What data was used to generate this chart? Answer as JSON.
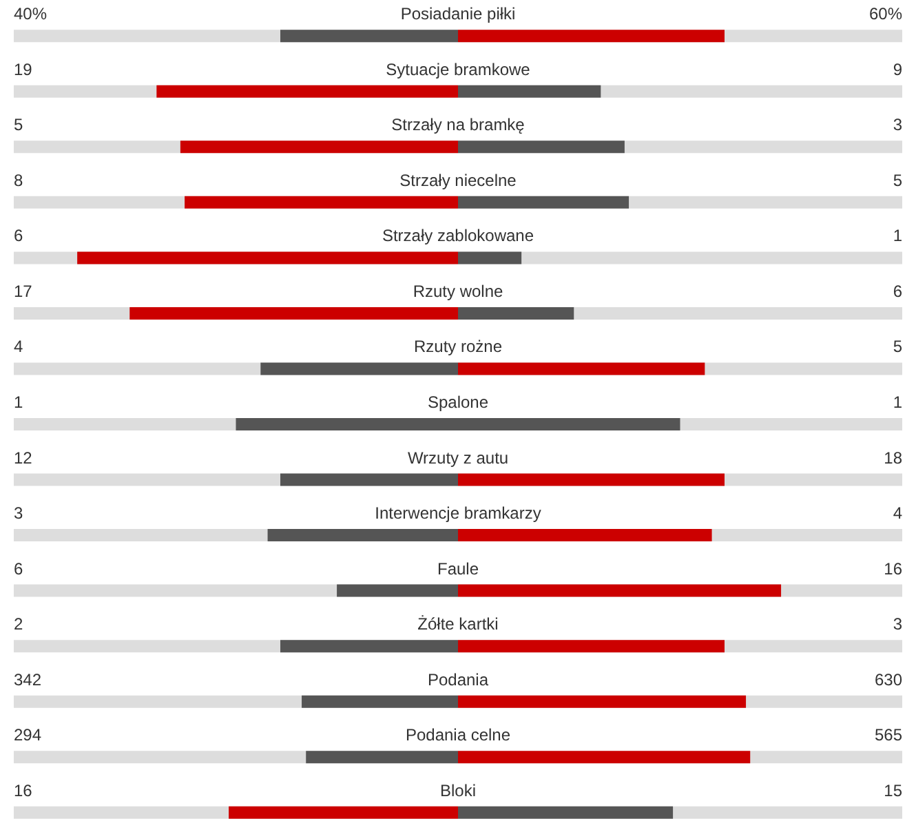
{
  "chart_data": {
    "type": "other",
    "categories": [
      "Posiadanie piłki",
      "Sytuacje bramkowe",
      "Strzały na bramkę",
      "Strzały niecelne",
      "Strzały zablokowane",
      "Rzuty wolne",
      "Rzuty rożne",
      "Spalone",
      "Wrzuty z autu",
      "Interwencje bramkarzy",
      "Faule",
      "Żółte kartki",
      "Podania",
      "Podania celne",
      "Bloki"
    ],
    "series": [
      {
        "values": [
          40,
          19,
          5,
          8,
          6,
          17,
          4,
          1,
          12,
          3,
          6,
          2,
          342,
          294,
          16
        ],
        "colors": [
          "#555555",
          "#cc0000",
          "#cc0000",
          "#cc0000",
          "#cc0000",
          "#cc0000",
          "#555555",
          "#555555",
          "#555555",
          "#555555",
          "#555555",
          "#555555",
          "#555555",
          "#555555",
          "#cc0000"
        ],
        "value_labels": [
          "40%",
          "19",
          "5",
          "8",
          "6",
          "17",
          "4",
          "1",
          "12",
          "3",
          "6",
          "2",
          "342",
          "294",
          "16"
        ]
      },
      {
        "values": [
          60,
          9,
          3,
          5,
          1,
          6,
          5,
          1,
          18,
          4,
          16,
          3,
          630,
          565,
          15
        ],
        "colors": [
          "#cc0000",
          "#555555",
          "#555555",
          "#555555",
          "#555555",
          "#555555",
          "#cc0000",
          "#555555",
          "#cc0000",
          "#cc0000",
          "#cc0000",
          "#cc0000",
          "#cc0000",
          "#cc0000",
          "#555555"
        ],
        "value_labels": [
          "60%",
          "9",
          "3",
          "5",
          "1",
          "6",
          "5",
          "1",
          "18",
          "4",
          "16",
          "3",
          "630",
          "565",
          "15"
        ]
      }
    ]
  }
}
